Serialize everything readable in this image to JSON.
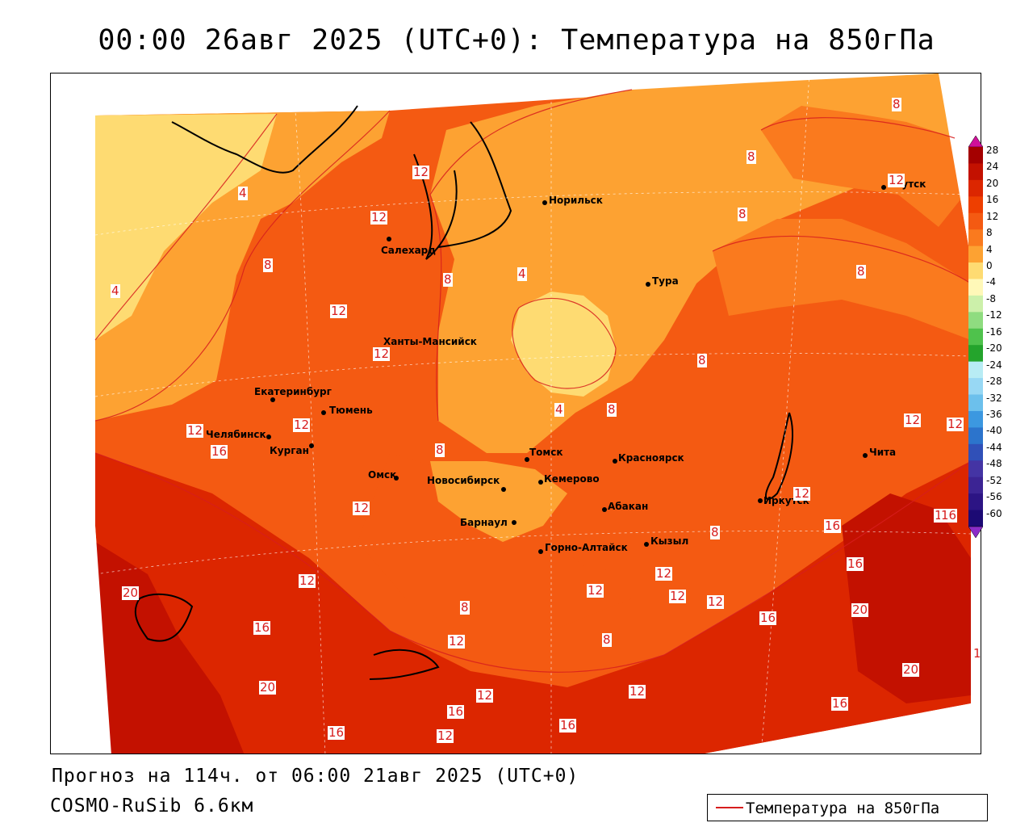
{
  "title": "00:00 26авг 2025 (UTC+0): Температура на 850гПа",
  "footer": {
    "forecast": "Прогноз на 114ч. от 06:00 21авг 2025 (UTC+0)",
    "model": "COSMO-RuSib 6.6км"
  },
  "legend": {
    "label": "Температура на 850гПа",
    "color": "#d71d1d"
  },
  "colorbar": {
    "ticks": [
      "28",
      "24",
      "20",
      "16",
      "12",
      "8",
      "4",
      "0",
      "-4",
      "-8",
      "-12",
      "-16",
      "-20",
      "-24",
      "-28",
      "-32",
      "-36",
      "-40",
      "-44",
      "-48",
      "-52",
      "-56",
      "-60"
    ],
    "colors": [
      "#a40000",
      "#c31100",
      "#dc2600",
      "#ee3f00",
      "#f45a12",
      "#fa7a1e",
      "#fda232",
      "#fedb72",
      "#fff8b8",
      "#ccf0aa",
      "#8fdc80",
      "#4fc24c",
      "#24a42c",
      "#b8ecf4",
      "#98d8f4",
      "#6cc0ec",
      "#3c98e0",
      "#2c74cc",
      "#3050b8",
      "#4434a4",
      "#3c2494",
      "#2c1484",
      "#1c0a74"
    ],
    "top_arrow_color": "#d0109a",
    "bottom_arrow_color": "#8c2cc8"
  },
  "map": {
    "cities": [
      {
        "name": "Норильск"
      },
      {
        "name": "Салехард"
      },
      {
        "name": "Тура"
      },
      {
        "name": "Якутск"
      },
      {
        "name": "Ханты-Мансийск"
      },
      {
        "name": "Екатеринбург"
      },
      {
        "name": "Тюмень"
      },
      {
        "name": "Челябинск"
      },
      {
        "name": "Курган"
      },
      {
        "name": "Омск"
      },
      {
        "name": "Новосибирск"
      },
      {
        "name": "Томск"
      },
      {
        "name": "Кемерово"
      },
      {
        "name": "Красноярск"
      },
      {
        "name": "Барнаул"
      },
      {
        "name": "Абакан"
      },
      {
        "name": "Горно-Алтайск"
      },
      {
        "name": "Кызыл"
      },
      {
        "name": "Иркутск"
      },
      {
        "name": "Чита"
      }
    ],
    "isotherm_labels": [
      "4",
      "12",
      "12",
      "8",
      "8",
      "8",
      "12",
      "12",
      "8",
      "8",
      "8",
      "8",
      "4",
      "4",
      "4",
      "12",
      "12",
      "12",
      "16",
      "12",
      "12",
      "16",
      "8",
      "8",
      "8",
      "8",
      "12",
      "12",
      "16",
      "16",
      "20",
      "12",
      "16",
      "20",
      "12",
      "12",
      "12",
      "16",
      "20",
      "12",
      "16",
      "20",
      "16",
      "16",
      "12",
      "12",
      "16",
      "8",
      "12",
      "12",
      "16",
      "1"
    ]
  }
}
